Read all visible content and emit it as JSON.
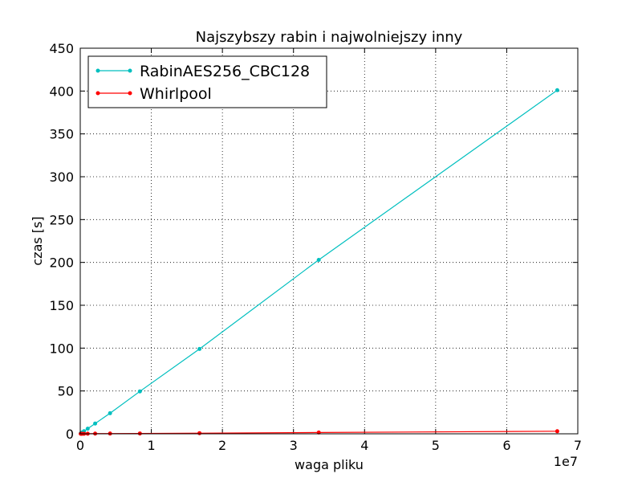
{
  "chart_data": {
    "type": "line",
    "title": "Najszybszy rabin i najwolniejszy inny",
    "xlabel": "waga pliku",
    "ylabel": "czas [s]",
    "x_offset_label": "1e7",
    "x": [
      65536,
      131072,
      262144,
      524288,
      1048576,
      2097152,
      4194304,
      8388608,
      16777216,
      33554432,
      67108864
    ],
    "series": [
      {
        "name": "RabinAES256_CBC128",
        "color": "#00bfbf",
        "values": [
          0.4,
          0.8,
          1.5,
          3,
          6,
          12,
          24,
          49.5,
          99,
          203,
          401
        ]
      },
      {
        "name": "Whirlpool",
        "color": "#ff0000",
        "values": [
          0.01,
          0.02,
          0.03,
          0.05,
          0.1,
          0.2,
          0.3,
          0.4,
          0.75,
          1.5,
          3
        ]
      }
    ],
    "xlim": [
      0,
      70000000
    ],
    "xticks": [
      {
        "value": 0,
        "label": "0"
      },
      {
        "value": 10000000,
        "label": "1"
      },
      {
        "value": 20000000,
        "label": "2"
      },
      {
        "value": 30000000,
        "label": "3"
      },
      {
        "value": 40000000,
        "label": "4"
      },
      {
        "value": 50000000,
        "label": "5"
      },
      {
        "value": 60000000,
        "label": "6"
      },
      {
        "value": 70000000,
        "label": "7"
      }
    ],
    "ylim": [
      0,
      450
    ],
    "yticks": [
      0,
      50,
      100,
      150,
      200,
      250,
      300,
      350,
      400,
      450
    ],
    "grid": true,
    "legend": "upper-left"
  }
}
